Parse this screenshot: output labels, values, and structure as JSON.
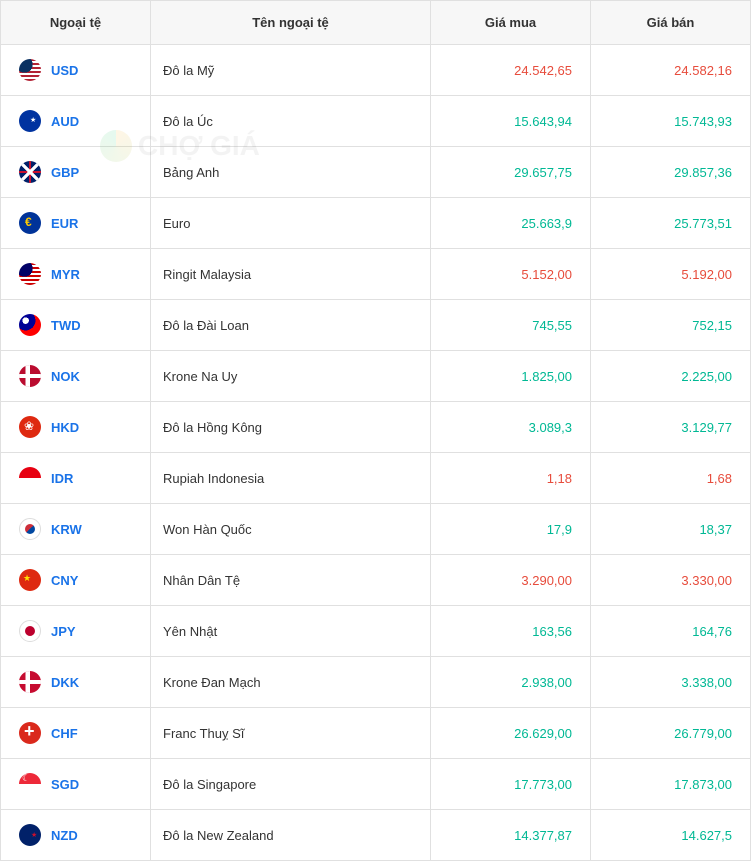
{
  "table": {
    "headers": {
      "code": "Ngoại tệ",
      "name": "Tên ngoại tệ",
      "buy": "Giá mua",
      "sell": "Giá bán"
    },
    "rows": [
      {
        "code": "USD",
        "flag": "usd",
        "name": "Đô la Mỹ",
        "buy": "24.542,65",
        "buy_dir": "down",
        "sell": "24.582,16",
        "sell_dir": "down"
      },
      {
        "code": "AUD",
        "flag": "aud",
        "name": "Đô la Úc",
        "buy": "15.643,94",
        "buy_dir": "up",
        "sell": "15.743,93",
        "sell_dir": "up"
      },
      {
        "code": "GBP",
        "flag": "gbp",
        "name": "Bảng Anh",
        "buy": "29.657,75",
        "buy_dir": "up",
        "sell": "29.857,36",
        "sell_dir": "up"
      },
      {
        "code": "EUR",
        "flag": "eur",
        "name": "Euro",
        "buy": "25.663,9",
        "buy_dir": "up",
        "sell": "25.773,51",
        "sell_dir": "up"
      },
      {
        "code": "MYR",
        "flag": "myr",
        "name": "Ringit Malaysia",
        "buy": "5.152,00",
        "buy_dir": "down",
        "sell": "5.192,00",
        "sell_dir": "down"
      },
      {
        "code": "TWD",
        "flag": "twd",
        "name": "Đô la Đài Loan",
        "buy": "745,55",
        "buy_dir": "up",
        "sell": "752,15",
        "sell_dir": "up"
      },
      {
        "code": "NOK",
        "flag": "nok",
        "name": "Krone Na Uy",
        "buy": "1.825,00",
        "buy_dir": "up",
        "sell": "2.225,00",
        "sell_dir": "up"
      },
      {
        "code": "HKD",
        "flag": "hkd",
        "name": "Đô la Hồng Kông",
        "buy": "3.089,3",
        "buy_dir": "up",
        "sell": "3.129,77",
        "sell_dir": "up"
      },
      {
        "code": "IDR",
        "flag": "idr",
        "name": "Rupiah Indonesia",
        "buy": "1,18",
        "buy_dir": "down",
        "sell": "1,68",
        "sell_dir": "down"
      },
      {
        "code": "KRW",
        "flag": "krw",
        "name": "Won Hàn Quốc",
        "buy": "17,9",
        "buy_dir": "up",
        "sell": "18,37",
        "sell_dir": "up"
      },
      {
        "code": "CNY",
        "flag": "cny",
        "name": "Nhân Dân Tệ",
        "buy": "3.290,00",
        "buy_dir": "down",
        "sell": "3.330,00",
        "sell_dir": "down"
      },
      {
        "code": "JPY",
        "flag": "jpy",
        "name": "Yên Nhật",
        "buy": "163,56",
        "buy_dir": "up",
        "sell": "164,76",
        "sell_dir": "up"
      },
      {
        "code": "DKK",
        "flag": "dkk",
        "name": "Krone Đan Mạch",
        "buy": "2.938,00",
        "buy_dir": "up",
        "sell": "3.338,00",
        "sell_dir": "up"
      },
      {
        "code": "CHF",
        "flag": "chf",
        "name": "Franc Thuỵ Sĩ",
        "buy": "26.629,00",
        "buy_dir": "up",
        "sell": "26.779,00",
        "sell_dir": "up"
      },
      {
        "code": "SGD",
        "flag": "sgd",
        "name": "Đô la Singapore",
        "buy": "17.773,00",
        "buy_dir": "up",
        "sell": "17.873,00",
        "sell_dir": "up"
      },
      {
        "code": "NZD",
        "flag": "nzd",
        "name": "Đô la New Zealand",
        "buy": "14.377,87",
        "buy_dir": "up",
        "sell": "14.627,5",
        "sell_dir": "up"
      }
    ]
  },
  "watermark": "CHỢ GIÁ",
  "colors": {
    "up": "#00b894",
    "down": "#e74c3c",
    "link": "#1a73e8",
    "border": "#e0e0e0",
    "header_bg": "#f7f7f7"
  }
}
